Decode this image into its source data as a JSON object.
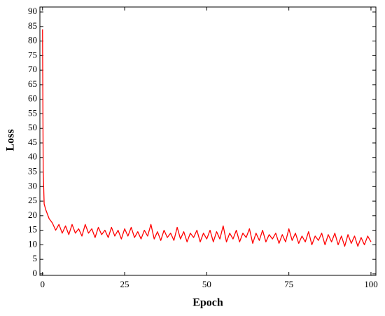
{
  "chart_data": {
    "type": "line",
    "xlabel": "Epoch",
    "ylabel": "Loss",
    "color": "#ff0000",
    "x": [
      0,
      0.2,
      0.5,
      1,
      2,
      3,
      4,
      5,
      6,
      7,
      8,
      9,
      10,
      11,
      12,
      13,
      14,
      15,
      16,
      17,
      18,
      19,
      20,
      21,
      22,
      23,
      24,
      25,
      26,
      27,
      28,
      29,
      30,
      31,
      32,
      33,
      34,
      35,
      36,
      37,
      38,
      39,
      40,
      41,
      42,
      43,
      44,
      45,
      46,
      47,
      48,
      49,
      50,
      51,
      52,
      53,
      54,
      55,
      56,
      57,
      58,
      59,
      60,
      61,
      62,
      63,
      64,
      65,
      66,
      67,
      68,
      69,
      70,
      71,
      72,
      73,
      74,
      75,
      76,
      77,
      78,
      79,
      80,
      81,
      82,
      83,
      84,
      85,
      86,
      87,
      88,
      89,
      90,
      91,
      92,
      93,
      94,
      95,
      96,
      97,
      98,
      99,
      100
    ],
    "values": [
      84,
      36,
      24,
      22,
      19,
      17.5,
      15,
      17,
      14,
      16.5,
      13.5,
      17,
      14,
      15.5,
      13,
      17,
      14,
      15.5,
      12.5,
      16,
      13.5,
      15,
      12.5,
      16,
      13,
      15,
      12,
      15.5,
      13,
      16,
      12.5,
      14.5,
      12,
      15,
      13,
      17,
      12,
      14.5,
      11.5,
      15,
      12.5,
      14,
      11.5,
      16,
      12,
      14.5,
      11,
      14,
      12.5,
      15,
      11,
      14,
      12,
      15,
      11,
      14.5,
      12,
      16.5,
      11,
      14,
      12,
      15,
      11,
      14,
      12.5,
      15.5,
      10.5,
      14,
      11.5,
      15,
      11,
      13.5,
      12,
      14,
      10.5,
      13.5,
      11,
      15.5,
      11.5,
      14,
      10.5,
      13,
      11,
      14.5,
      10,
      13,
      11.5,
      14,
      10,
      13.5,
      11,
      14,
      10,
      13,
      9.5,
      13.5,
      10.5,
      13,
      9.5,
      12.5,
      10,
      13,
      11
    ],
    "xlim": [
      -0.8,
      101.5
    ],
    "ylim": [
      -0.5,
      91.7
    ],
    "xticks": [
      0,
      25,
      50,
      75,
      100
    ],
    "yticks": [
      0,
      5,
      10,
      15,
      20,
      25,
      30,
      35,
      40,
      45,
      50,
      55,
      60,
      65,
      70,
      75,
      80,
      85,
      90
    ]
  }
}
